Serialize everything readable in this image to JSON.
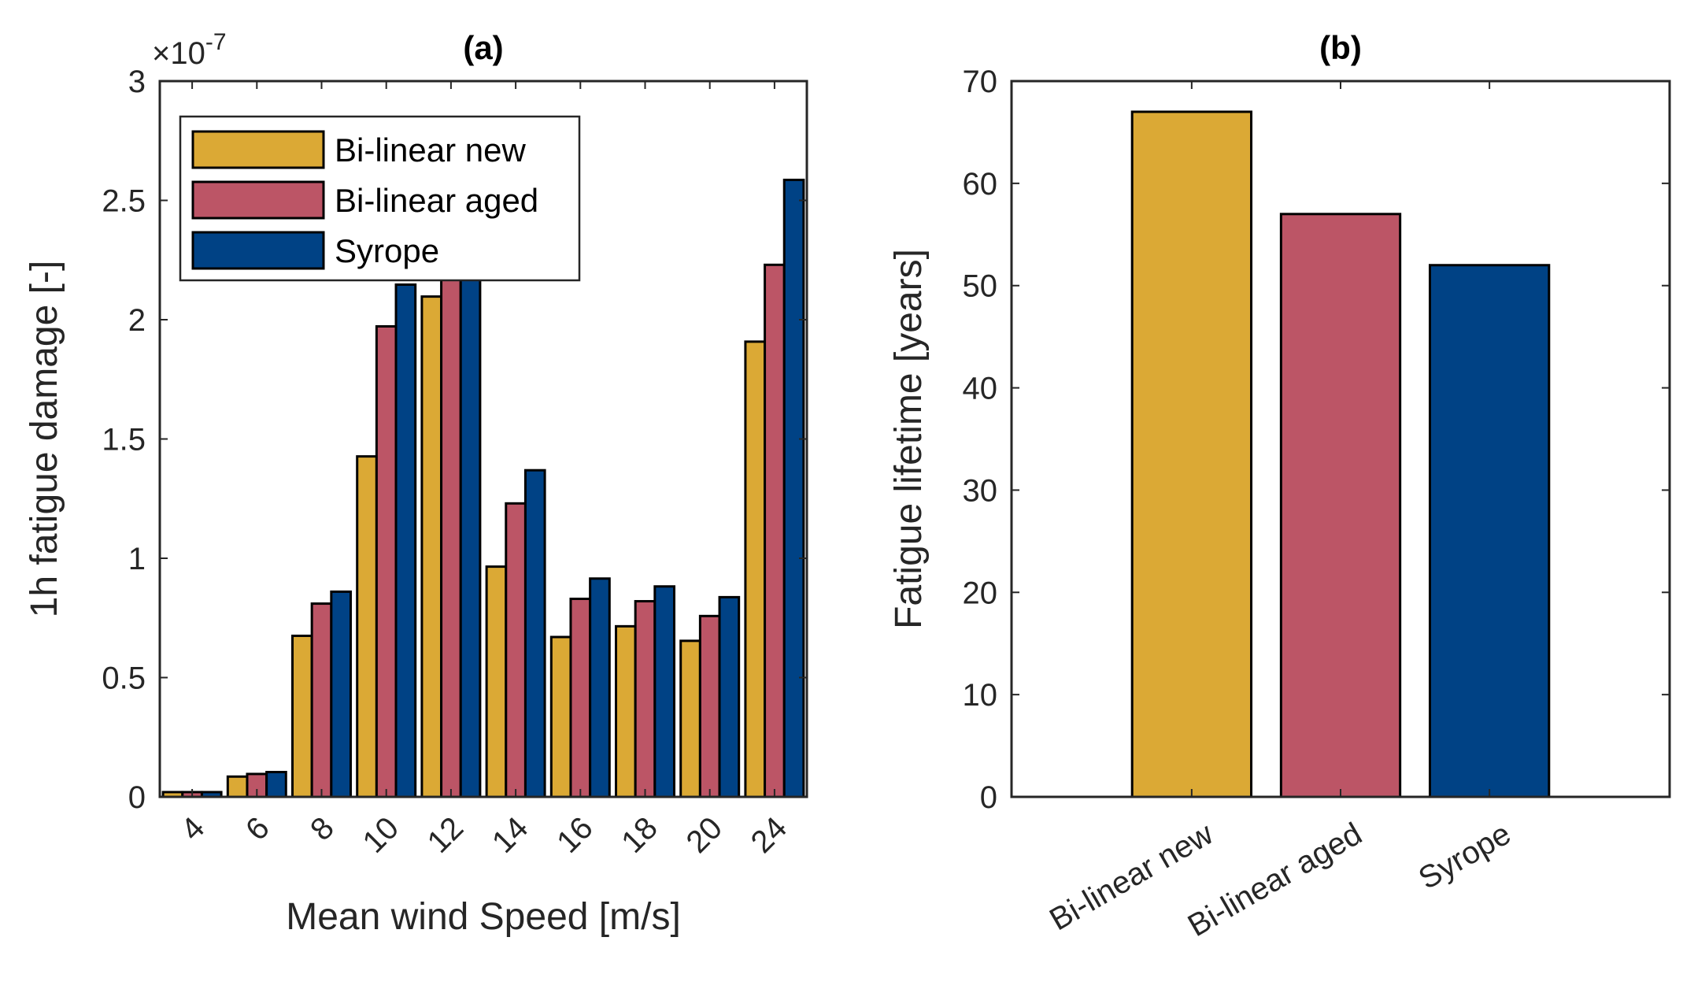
{
  "colors": {
    "bilinear_new": "#DBA935",
    "bilinear_aged": "#BC5566",
    "syrope": "#004285"
  },
  "chart_data": [
    {
      "type": "bar",
      "title": "(a)",
      "xlabel": "Mean wind Speed [m/s]",
      "ylabel": "1h fatigue damage [-]",
      "exponent_label": "×10",
      "exponent": "-7",
      "ylim": [
        0,
        3
      ],
      "yticks": [
        "0",
        "0.5",
        "1",
        "1.5",
        "2",
        "2.5",
        "3"
      ],
      "ytick_values": [
        0,
        0.5,
        1,
        1.5,
        2,
        2.5,
        3
      ],
      "categories": [
        "4",
        "6",
        "8",
        "10",
        "12",
        "14",
        "16",
        "18",
        "20",
        "24"
      ],
      "legend_position": "top-left",
      "series": [
        {
          "name": "Bi-linear new",
          "values": [
            0.02,
            0.085,
            0.675,
            1.427,
            2.097,
            0.965,
            0.67,
            0.715,
            0.654,
            1.908
          ]
        },
        {
          "name": "Bi-linear aged",
          "values": [
            0.02,
            0.096,
            0.81,
            1.972,
            2.3,
            1.23,
            0.83,
            0.82,
            0.758,
            2.23
          ]
        },
        {
          "name": "Syrope",
          "values": [
            0.02,
            0.104,
            0.86,
            2.147,
            2.5,
            1.369,
            0.915,
            0.882,
            0.837,
            2.586
          ]
        }
      ],
      "value_unit_multiplier": "1e-7",
      "grid": false
    },
    {
      "type": "bar",
      "title": "(b)",
      "xlabel": "",
      "ylabel": "Fatigue lifetime [years]",
      "ylim": [
        0,
        70
      ],
      "yticks": [
        "0",
        "10",
        "20",
        "30",
        "40",
        "50",
        "60",
        "70"
      ],
      "ytick_values": [
        0,
        10,
        20,
        30,
        40,
        50,
        60,
        70
      ],
      "categories": [
        "Bi-linear new",
        "Bi-linear aged",
        "Syrope"
      ],
      "values": [
        67,
        57,
        52
      ],
      "grid": false
    }
  ]
}
